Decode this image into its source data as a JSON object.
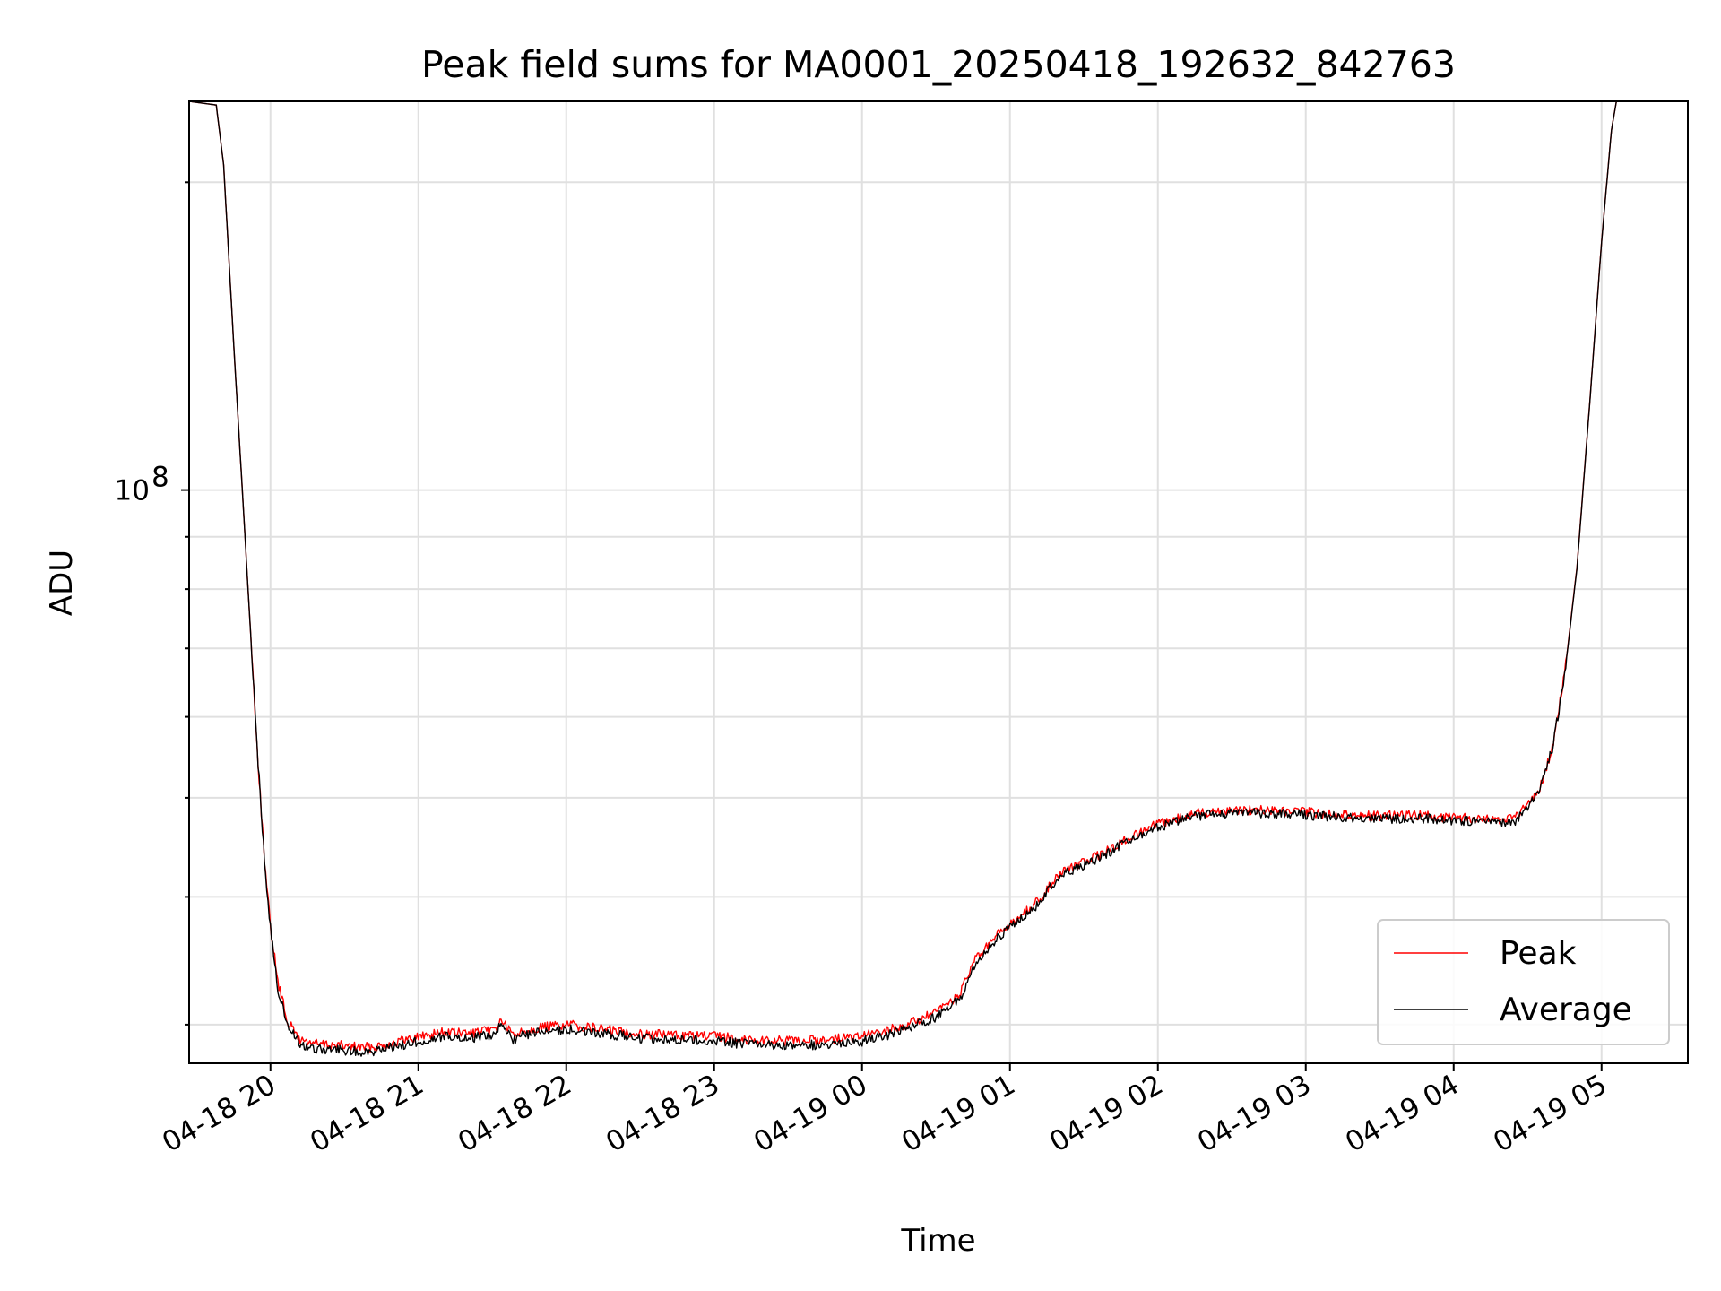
{
  "chart_data": {
    "type": "line",
    "title": "Peak field sums for MA0001_20250418_192632_842763",
    "xlabel": "Time",
    "ylabel": "ADU",
    "y_scale": "log",
    "grid": true,
    "legend_position": "lower-right",
    "x_ticks": [
      {
        "value": "2025-04-18T20:00",
        "label": "04-18 20"
      },
      {
        "value": "2025-04-18T21:00",
        "label": "04-18 21"
      },
      {
        "value": "2025-04-18T22:00",
        "label": "04-18 22"
      },
      {
        "value": "2025-04-18T23:00",
        "label": "04-18 23"
      },
      {
        "value": "2025-04-19T00:00",
        "label": "04-19 00"
      },
      {
        "value": "2025-04-19T01:00",
        "label": "04-19 01"
      },
      {
        "value": "2025-04-19T02:00",
        "label": "04-19 02"
      },
      {
        "value": "2025-04-19T03:00",
        "label": "04-19 03"
      },
      {
        "value": "2025-04-19T04:00",
        "label": "04-19 04"
      },
      {
        "value": "2025-04-19T05:00",
        "label": "04-19 05"
      }
    ],
    "xlim": [
      "2025-04-18T19:27",
      "2025-04-19T05:35"
    ],
    "ylim": [
      27500000,
      240000000
    ],
    "y_major_ticks": [
      {
        "value": 100000000,
        "label_base": "10",
        "label_exp": "8"
      }
    ],
    "y_minor_ticks": [
      30000000,
      40000000,
      50000000,
      60000000,
      70000000,
      80000000,
      90000000,
      200000000
    ],
    "series": [
      {
        "name": "Peak",
        "color": "#ff0000",
        "points": [
          [
            "2025-04-18T19:27",
            240000000
          ],
          [
            "2025-04-18T19:38",
            238000000
          ],
          [
            "2025-04-18T19:41",
            208000000
          ],
          [
            "2025-04-18T19:45",
            140000000
          ],
          [
            "2025-04-18T19:49",
            96000000
          ],
          [
            "2025-04-18T19:52",
            72000000
          ],
          [
            "2025-04-18T19:55",
            54000000
          ],
          [
            "2025-04-18T19:58",
            42000000
          ],
          [
            "2025-04-18T20:00",
            37500000
          ],
          [
            "2025-04-18T20:03",
            33000000
          ],
          [
            "2025-04-18T20:07",
            30200000
          ],
          [
            "2025-04-18T20:12",
            29000000
          ],
          [
            "2025-04-18T20:20",
            28700000
          ],
          [
            "2025-04-18T20:30",
            28600000
          ],
          [
            "2025-04-18T20:40",
            28500000
          ],
          [
            "2025-04-18T20:50",
            28800000
          ],
          [
            "2025-04-18T21:00",
            29200000
          ],
          [
            "2025-04-18T21:10",
            29500000
          ],
          [
            "2025-04-18T21:20",
            29400000
          ],
          [
            "2025-04-18T21:30",
            29600000
          ],
          [
            "2025-04-18T21:34",
            30300000
          ],
          [
            "2025-04-18T21:38",
            29300000
          ],
          [
            "2025-04-18T21:45",
            29700000
          ],
          [
            "2025-04-18T22:00",
            30000000
          ],
          [
            "2025-04-18T22:15",
            29700000
          ],
          [
            "2025-04-18T22:30",
            29400000
          ],
          [
            "2025-04-18T22:45",
            29300000
          ],
          [
            "2025-04-18T23:00",
            29200000
          ],
          [
            "2025-04-18T23:15",
            29000000
          ],
          [
            "2025-04-18T23:30",
            28900000
          ],
          [
            "2025-04-18T23:45",
            29000000
          ],
          [
            "2025-04-19T00:00",
            29200000
          ],
          [
            "2025-04-19T00:15",
            29800000
          ],
          [
            "2025-04-19T00:30",
            30800000
          ],
          [
            "2025-04-19T00:40",
            32200000
          ],
          [
            "2025-04-19T00:45",
            34500000
          ],
          [
            "2025-04-19T00:55",
            36700000
          ],
          [
            "2025-04-19T01:00",
            37600000
          ],
          [
            "2025-04-19T01:10",
            39300000
          ],
          [
            "2025-04-19T01:20",
            42200000
          ],
          [
            "2025-04-19T01:35",
            43800000
          ],
          [
            "2025-04-19T01:50",
            45900000
          ],
          [
            "2025-04-19T02:00",
            47100000
          ],
          [
            "2025-04-19T02:15",
            48300000
          ],
          [
            "2025-04-19T02:30",
            48700000
          ],
          [
            "2025-04-19T02:45",
            48600000
          ],
          [
            "2025-04-19T03:00",
            48400000
          ],
          [
            "2025-04-19T03:15",
            48200000
          ],
          [
            "2025-04-19T03:30",
            48000000
          ],
          [
            "2025-04-19T03:45",
            48100000
          ],
          [
            "2025-04-19T04:00",
            47800000
          ],
          [
            "2025-04-19T04:15",
            47600000
          ],
          [
            "2025-04-19T04:25",
            47700000
          ],
          [
            "2025-04-19T04:35",
            51000000
          ],
          [
            "2025-04-19T04:40",
            56000000
          ],
          [
            "2025-04-19T04:45",
            66000000
          ],
          [
            "2025-04-19T04:50",
            84000000
          ],
          [
            "2025-04-19T04:55",
            120000000
          ],
          [
            "2025-04-19T05:00",
            175000000
          ],
          [
            "2025-04-19T05:04",
            225000000
          ],
          [
            "2025-04-19T05:06",
            240000000
          ]
        ]
      },
      {
        "name": "Average",
        "color": "#000000",
        "points": [
          [
            "2025-04-18T19:27",
            240000000
          ],
          [
            "2025-04-18T19:38",
            238000000
          ],
          [
            "2025-04-18T19:41",
            208000000
          ],
          [
            "2025-04-18T19:45",
            140000000
          ],
          [
            "2025-04-18T19:49",
            96000000
          ],
          [
            "2025-04-18T19:52",
            72000000
          ],
          [
            "2025-04-18T19:55",
            54000000
          ],
          [
            "2025-04-18T19:58",
            42000000
          ],
          [
            "2025-04-18T20:00",
            37200000
          ],
          [
            "2025-04-18T20:03",
            32600000
          ],
          [
            "2025-04-18T20:07",
            29900000
          ],
          [
            "2025-04-18T20:12",
            28700000
          ],
          [
            "2025-04-18T20:20",
            28400000
          ],
          [
            "2025-04-18T20:30",
            28300000
          ],
          [
            "2025-04-18T20:40",
            28200000
          ],
          [
            "2025-04-18T20:50",
            28500000
          ],
          [
            "2025-04-18T21:00",
            28900000
          ],
          [
            "2025-04-18T21:10",
            29200000
          ],
          [
            "2025-04-18T21:20",
            29100000
          ],
          [
            "2025-04-18T21:30",
            29300000
          ],
          [
            "2025-04-18T21:34",
            30000000
          ],
          [
            "2025-04-18T21:38",
            29000000
          ],
          [
            "2025-04-18T21:45",
            29400000
          ],
          [
            "2025-04-18T22:00",
            29700000
          ],
          [
            "2025-04-18T22:15",
            29400000
          ],
          [
            "2025-04-18T22:30",
            29100000
          ],
          [
            "2025-04-18T22:45",
            29000000
          ],
          [
            "2025-04-18T23:00",
            28900000
          ],
          [
            "2025-04-18T23:15",
            28700000
          ],
          [
            "2025-04-18T23:30",
            28600000
          ],
          [
            "2025-04-18T23:45",
            28700000
          ],
          [
            "2025-04-19T00:00",
            28900000
          ],
          [
            "2025-04-19T00:15",
            29500000
          ],
          [
            "2025-04-19T00:30",
            30500000
          ],
          [
            "2025-04-19T00:40",
            31900000
          ],
          [
            "2025-04-19T00:45",
            34200000
          ],
          [
            "2025-04-19T00:55",
            36400000
          ],
          [
            "2025-04-19T01:00",
            37300000
          ],
          [
            "2025-04-19T01:10",
            39000000
          ],
          [
            "2025-04-19T01:20",
            41900000
          ],
          [
            "2025-04-19T01:35",
            43500000
          ],
          [
            "2025-04-19T01:50",
            45600000
          ],
          [
            "2025-04-19T02:00",
            46800000
          ],
          [
            "2025-04-19T02:15",
            48000000
          ],
          [
            "2025-04-19T02:30",
            48400000
          ],
          [
            "2025-04-19T02:45",
            48300000
          ],
          [
            "2025-04-19T03:00",
            48100000
          ],
          [
            "2025-04-19T03:15",
            47900000
          ],
          [
            "2025-04-19T03:30",
            47700000
          ],
          [
            "2025-04-19T03:45",
            47800000
          ],
          [
            "2025-04-19T04:00",
            47500000
          ],
          [
            "2025-04-19T04:15",
            47300000
          ],
          [
            "2025-04-19T04:25",
            47400000
          ],
          [
            "2025-04-19T04:35",
            50800000
          ],
          [
            "2025-04-19T04:40",
            55800000
          ],
          [
            "2025-04-19T04:45",
            65800000
          ],
          [
            "2025-04-19T04:50",
            83800000
          ],
          [
            "2025-04-19T04:55",
            119800000
          ],
          [
            "2025-04-19T05:00",
            174800000
          ],
          [
            "2025-04-19T05:04",
            224800000
          ],
          [
            "2025-04-19T05:06",
            240000000
          ]
        ]
      }
    ]
  }
}
